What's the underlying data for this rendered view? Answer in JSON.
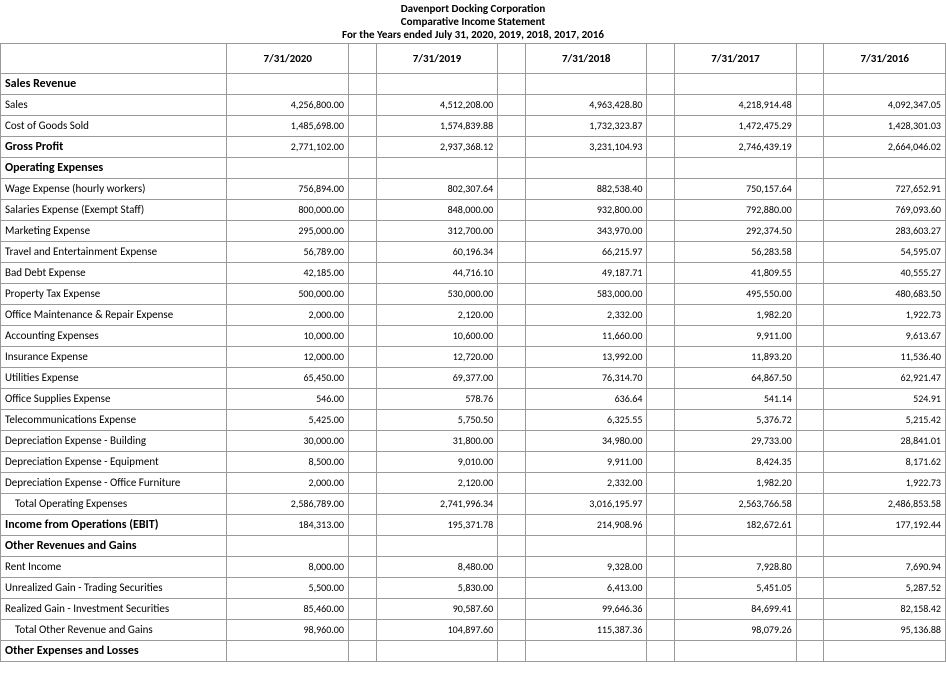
{
  "header": {
    "line1": "Davenport Docking Corporation",
    "line2": "Comparative Income Statement",
    "line3": "For the Years ended July 31, 2020, 2019, 2018, 2017, 2016"
  },
  "columns": [
    "7/31/2020",
    "7/31/2019",
    "7/31/2018",
    "7/31/2017",
    "7/31/2016"
  ],
  "rows": [
    {
      "type": "section",
      "label": "Sales Revenue"
    },
    {
      "type": "data",
      "label": "Sales",
      "values": [
        "4,256,800.00",
        "4,512,208.00",
        "4,963,428.80",
        "4,218,914.48",
        "4,092,347.05"
      ]
    },
    {
      "type": "data",
      "label": "Cost of Goods Sold",
      "values": [
        "1,485,698.00",
        "1,574,839.88",
        "1,732,323.87",
        "1,472,475.29",
        "1,428,301.03"
      ]
    },
    {
      "type": "section_data",
      "label": "Gross Profit",
      "values": [
        "2,771,102.00",
        "2,937,368.12",
        "3,231,104.93",
        "2,746,439.19",
        "2,664,046.02"
      ]
    },
    {
      "type": "section",
      "label": "Operating Expenses"
    },
    {
      "type": "data",
      "label": "Wage Expense (hourly workers)",
      "values": [
        "756,894.00",
        "802,307.64",
        "882,538.40",
        "750,157.64",
        "727,652.91"
      ]
    },
    {
      "type": "data",
      "label": "Salaries Expense (Exempt Staff)",
      "values": [
        "800,000.00",
        "848,000.00",
        "932,800.00",
        "792,880.00",
        "769,093.60"
      ]
    },
    {
      "type": "data",
      "label": "Marketing Expense",
      "values": [
        "295,000.00",
        "312,700.00",
        "343,970.00",
        "292,374.50",
        "283,603.27"
      ]
    },
    {
      "type": "data",
      "label": "Travel and Entertainment Expense",
      "values": [
        "56,789.00",
        "60,196.34",
        "66,215.97",
        "56,283.58",
        "54,595.07"
      ]
    },
    {
      "type": "data",
      "label": "Bad Debt Expense",
      "values": [
        "42,185.00",
        "44,716.10",
        "49,187.71",
        "41,809.55",
        "40,555.27"
      ]
    },
    {
      "type": "data",
      "label": "Property Tax Expense",
      "values": [
        "500,000.00",
        "530,000.00",
        "583,000.00",
        "495,550.00",
        "480,683.50"
      ]
    },
    {
      "type": "data",
      "label": "Office Maintenance & Repair Expense",
      "values": [
        "2,000.00",
        "2,120.00",
        "2,332.00",
        "1,982.20",
        "1,922.73"
      ]
    },
    {
      "type": "data",
      "label": "Accounting Expenses",
      "values": [
        "10,000.00",
        "10,600.00",
        "11,660.00",
        "9,911.00",
        "9,613.67"
      ]
    },
    {
      "type": "data",
      "label": "Insurance Expense",
      "values": [
        "12,000.00",
        "12,720.00",
        "13,992.00",
        "11,893.20",
        "11,536.40"
      ]
    },
    {
      "type": "data",
      "label": "Utilities Expense",
      "values": [
        "65,450.00",
        "69,377.00",
        "76,314.70",
        "64,867.50",
        "62,921.47"
      ]
    },
    {
      "type": "data",
      "label": "Office Supplies Expense",
      "values": [
        "546.00",
        "578.76",
        "636.64",
        "541.14",
        "524.91"
      ]
    },
    {
      "type": "data",
      "label": "Telecommunications Expense",
      "values": [
        "5,425.00",
        "5,750.50",
        "6,325.55",
        "5,376.72",
        "5,215.42"
      ]
    },
    {
      "type": "data",
      "label": "Depreciation Expense - Building",
      "values": [
        "30,000.00",
        "31,800.00",
        "34,980.00",
        "29,733.00",
        "28,841.01"
      ]
    },
    {
      "type": "data",
      "label": "Depreciation Expense - Equipment",
      "values": [
        "8,500.00",
        "9,010.00",
        "9,911.00",
        "8,424.35",
        "8,171.62"
      ]
    },
    {
      "type": "data",
      "label": "Depreciation Expense - Office Furniture",
      "values": [
        "2,000.00",
        "2,120.00",
        "2,332.00",
        "1,982.20",
        "1,922.73"
      ]
    },
    {
      "type": "data_indent",
      "label": "Total Operating Expenses",
      "values": [
        "2,586,789.00",
        "2,741,996.34",
        "3,016,195.97",
        "2,563,766.58",
        "2,486,853.58"
      ]
    },
    {
      "type": "section_data",
      "label": "Income from Operations (EBIT)",
      "values": [
        "184,313.00",
        "195,371.78",
        "214,908.96",
        "182,672.61",
        "177,192.44"
      ]
    },
    {
      "type": "section",
      "label": "Other Revenues and Gains"
    },
    {
      "type": "data",
      "label": "Rent Income",
      "values": [
        "8,000.00",
        "8,480.00",
        "9,328.00",
        "7,928.80",
        "7,690.94"
      ]
    },
    {
      "type": "data",
      "label": "Unrealized Gain - Trading Securities",
      "values": [
        "5,500.00",
        "5,830.00",
        "6,413.00",
        "5,451.05",
        "5,287.52"
      ]
    },
    {
      "type": "data",
      "label": "Realized Gain - Investment Securities",
      "values": [
        "85,460.00",
        "90,587.60",
        "99,646.36",
        "84,699.41",
        "82,158.42"
      ]
    },
    {
      "type": "data_indent",
      "label": "Total Other Revenue and Gains",
      "values": [
        "98,960.00",
        "104,897.60",
        "115,387.36",
        "98,079.26",
        "95,136.88"
      ]
    },
    {
      "type": "section",
      "label": "Other Expenses and Losses"
    }
  ],
  "style": {
    "border_color": "#9a9a9a",
    "background_color": "#ffffff",
    "text_color": "#000000",
    "header_fontsize": 11,
    "body_fontsize": 11,
    "value_fontsize": 10,
    "font_family": "Calibri"
  }
}
